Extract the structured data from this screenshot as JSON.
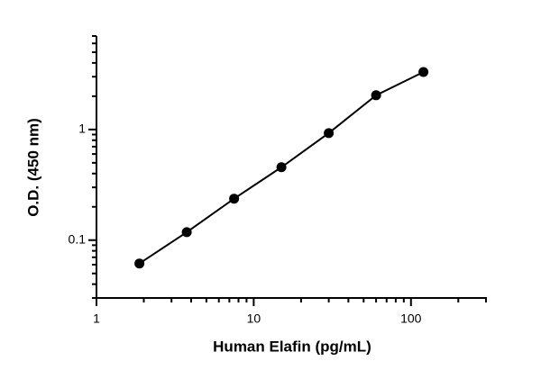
{
  "chart_data": {
    "type": "scatter",
    "x_label": "Human Elafin (pg/mL)",
    "y_label": "O.D. (450 nm)",
    "xscale": "log",
    "yscale": "log",
    "xlim": [
      1,
      300
    ],
    "ylim": [
      0.03,
      7
    ],
    "xticks": [
      1,
      10,
      100
    ],
    "yticks": [
      0.1,
      1
    ],
    "xminorticks": [
      2,
      3,
      4,
      5,
      6,
      7,
      8,
      9,
      20,
      30,
      40,
      50,
      60,
      70,
      80,
      90,
      200,
      300
    ],
    "yminorticks": [
      0.03,
      0.04,
      0.05,
      0.06,
      0.07,
      0.08,
      0.09,
      0.2,
      0.3,
      0.4,
      0.5,
      0.6,
      0.7,
      0.8,
      0.9,
      2,
      3,
      4,
      5,
      6,
      7
    ],
    "series": [
      {
        "color": "#000000",
        "x": [
          1.875,
          3.75,
          7.5,
          15,
          30,
          60,
          120
        ],
        "values": [
          0.0615,
          0.118,
          0.237,
          0.456,
          0.928,
          2.04,
          3.31
        ]
      }
    ]
  }
}
